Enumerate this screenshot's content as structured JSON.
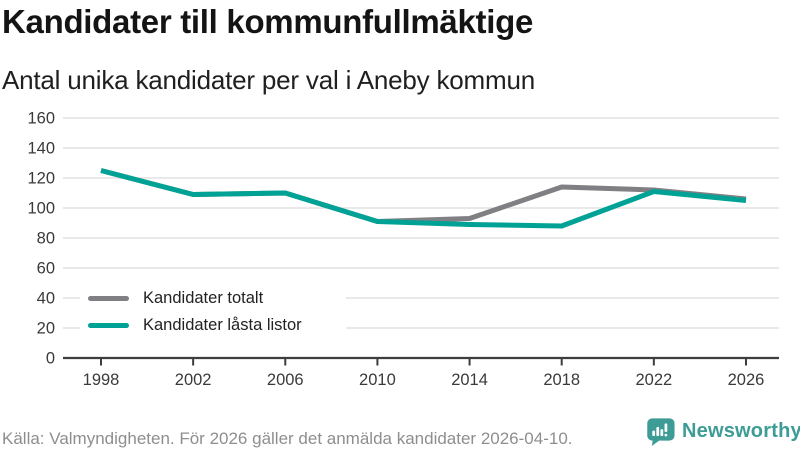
{
  "header": {
    "title": "Kandidater till kommunfullmäktige",
    "subtitle": "Antal unika kandidater per val i Aneby kommun"
  },
  "chart_data": {
    "type": "line",
    "x": [
      1998,
      2002,
      2006,
      2010,
      2014,
      2018,
      2022,
      2026
    ],
    "series": [
      {
        "name": "Kandidater totalt",
        "color": "#808084",
        "values": [
          125,
          109,
          110,
          91,
          93,
          114,
          112,
          106
        ]
      },
      {
        "name": "Kandidater låsta listor",
        "color": "#00a295",
        "values": [
          125,
          109,
          110,
          91,
          89,
          88,
          111,
          105
        ]
      }
    ],
    "ylim": [
      0,
      160
    ],
    "yticks": [
      0,
      20,
      40,
      60,
      80,
      100,
      120,
      140,
      160
    ],
    "xticks": [
      "1998",
      "2002",
      "2006",
      "2010",
      "2014",
      "2018",
      "2022",
      "2026"
    ],
    "grid": "horizontal",
    "legend_position": "lower-left",
    "title": "Kandidater till kommunfullmäktige",
    "xlabel": "",
    "ylabel": ""
  },
  "legend": {
    "items": [
      {
        "label": "Kandidater totalt"
      },
      {
        "label": "Kandidater låsta listor"
      }
    ]
  },
  "footer": {
    "source": "Källa: Valmyndigheten. För 2026 gäller det anmälda kandidater 2026-04-10.",
    "brand": "Newsworthy"
  },
  "colors": {
    "accent_teal": "#00a295",
    "series_gray": "#808084",
    "brand_teal": "#3e9c96",
    "gridline": "#e2e2e2",
    "axis": "#3d3d3d"
  }
}
